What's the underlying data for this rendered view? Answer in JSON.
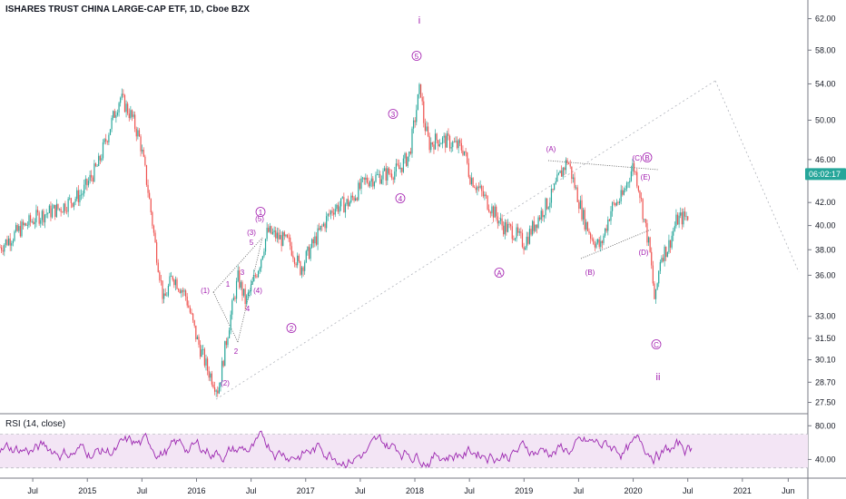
{
  "header": {
    "title": "ISHARES TRUST CHINA LARGE-CAP ETF, 1D, Cboe BZX"
  },
  "rsi": {
    "label": "RSI (14, close)",
    "ticks": [
      80.0,
      40.0
    ],
    "band": [
      70,
      30
    ],
    "range": [
      20,
      90
    ]
  },
  "price_badge": {
    "text": "06:02:17",
    "value": 44.6,
    "color": "#26a69a"
  },
  "colors": {
    "up": "#26a69a",
    "down": "#ef5350",
    "wave": "#a21caf",
    "rsi_line": "#9c27b0",
    "rsi_band": "#f3e5f5"
  },
  "chart_data": {
    "type": "line",
    "ylim": [
      26.9,
      64.5
    ],
    "yticks": [
      62.0,
      58.0,
      54.0,
      50.0,
      46.0,
      42.0,
      40.0,
      38.0,
      36.0,
      33.0,
      31.5,
      30.1,
      28.7,
      27.5
    ],
    "y_scale": "log",
    "x_ticks": [
      "Jul",
      "2015",
      "Jul",
      "2016",
      "Jul",
      "2017",
      "Jul",
      "2018",
      "Jul",
      "2019",
      "Jul",
      "2020",
      "Jul",
      "2021",
      "Jun"
    ],
    "x_tick_dates": [
      2014.5,
      2015.0,
      2015.5,
      2016.0,
      2016.5,
      2017.0,
      2017.5,
      2018.0,
      2018.5,
      2019.0,
      2019.5,
      2020.0,
      2020.5,
      2021.0,
      2021.42
    ],
    "xlim": [
      2014.2,
      2021.6
    ],
    "series": [
      {
        "x": [
          2014.2,
          2014.4,
          2014.55,
          2014.75,
          2014.95,
          2015.1,
          2015.3,
          2015.4,
          2015.48,
          2015.55,
          2015.62,
          2015.7,
          2015.78,
          2015.9,
          2016.0,
          2016.1,
          2016.2,
          2016.3,
          2016.38,
          2016.45,
          2016.5,
          2016.58,
          2016.65,
          2016.75,
          2016.85,
          2016.95,
          2017.1,
          2017.25,
          2017.4,
          2017.55,
          2017.7,
          2017.85,
          2017.95,
          2018.05,
          2018.08,
          2018.13,
          2018.2,
          2018.3,
          2018.45,
          2018.5,
          2018.6,
          2018.7,
          2018.8,
          2018.9,
          2019.0,
          2019.12,
          2019.25,
          2019.33,
          2019.4,
          2019.45,
          2019.55,
          2019.62,
          2019.7,
          2019.8,
          2019.9,
          2020.0,
          2020.05,
          2020.1,
          2020.15,
          2020.2,
          2020.25,
          2020.32,
          2020.4,
          2020.5
        ],
        "values": [
          38.2,
          39.8,
          40.8,
          41.5,
          42.8,
          45.5,
          52.5,
          50.5,
          48.0,
          43.5,
          38.5,
          34.0,
          36.0,
          34.5,
          31.5,
          29.5,
          28.2,
          32.5,
          35.8,
          34.0,
          35.0,
          37.0,
          39.5,
          39.0,
          38.5,
          36.5,
          39.0,
          41.5,
          42.0,
          44.0,
          44.5,
          45.0,
          46.5,
          53.8,
          50.0,
          47.5,
          48.0,
          47.8,
          47.0,
          44.5,
          43.0,
          41.5,
          40.0,
          39.5,
          38.5,
          40.5,
          42.5,
          44.5,
          46.0,
          44.0,
          40.5,
          39.0,
          38.2,
          41.5,
          42.5,
          45.5,
          43.5,
          40.5,
          38.0,
          33.8,
          37.5,
          38.2,
          40.5,
          40.8
        ]
      }
    ]
  },
  "annotations": {
    "degree_big": [
      "i",
      "ii"
    ],
    "circled": [
      "1",
      "2",
      "3",
      "4",
      "5",
      "A",
      "B",
      "C"
    ],
    "minor": [
      "(1)",
      "(2)",
      "(3)",
      "(4)",
      "(5)",
      "1",
      "2",
      "3",
      "4",
      "5",
      "(A)",
      "(B)",
      "(C)",
      "(D)",
      "(E)"
    ]
  }
}
